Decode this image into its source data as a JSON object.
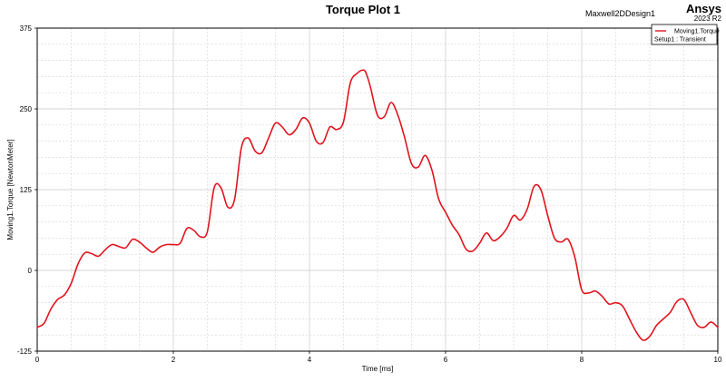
{
  "header": {
    "design_name": "Maxwell2DDesign1",
    "brand": "Ansys",
    "version": "2023 R2"
  },
  "colors": {
    "series": "#e1141e",
    "grid": "#d4d4d4",
    "axis": "#000000",
    "background": "#ffffff"
  },
  "chart_data": {
    "type": "line",
    "title": "Torque Plot 1",
    "xlabel": "Time [ms]",
    "ylabel": "Moving1.Torque [NewtonMeter]",
    "xlim": [
      0,
      10
    ],
    "ylim": [
      -125,
      375
    ],
    "x_ticks": [
      "0",
      "2",
      "4",
      "6",
      "8",
      "10"
    ],
    "x_tick_values": [
      0,
      2,
      4,
      6,
      8,
      10
    ],
    "y_ticks": [
      "-125",
      "0",
      "125",
      "250",
      "375"
    ],
    "y_tick_values": [
      -125,
      0,
      125,
      250,
      375
    ],
    "grid": true,
    "legend_position": "top-right",
    "legend": {
      "series_label": "Moving1.Torque",
      "setup_label": "Setup1 : Transient"
    },
    "series": [
      {
        "name": "Moving1.Torque",
        "color": "#e1141e",
        "x": [
          0.0,
          0.1,
          0.2,
          0.3,
          0.4,
          0.5,
          0.6,
          0.7,
          0.8,
          0.9,
          1.0,
          1.1,
          1.2,
          1.3,
          1.4,
          1.5,
          1.6,
          1.7,
          1.8,
          1.9,
          2.0,
          2.1,
          2.2,
          2.3,
          2.4,
          2.5,
          2.6,
          2.7,
          2.8,
          2.9,
          3.0,
          3.1,
          3.2,
          3.3,
          3.4,
          3.5,
          3.6,
          3.7,
          3.8,
          3.9,
          4.0,
          4.1,
          4.2,
          4.3,
          4.4,
          4.5,
          4.6,
          4.7,
          4.8,
          4.85,
          4.9,
          5.0,
          5.1,
          5.2,
          5.3,
          5.4,
          5.5,
          5.6,
          5.7,
          5.8,
          5.9,
          6.0,
          6.1,
          6.2,
          6.3,
          6.4,
          6.5,
          6.6,
          6.7,
          6.8,
          6.9,
          7.0,
          7.1,
          7.2,
          7.3,
          7.4,
          7.5,
          7.6,
          7.7,
          7.8,
          7.9,
          8.0,
          8.1,
          8.2,
          8.3,
          8.4,
          8.5,
          8.6,
          8.7,
          8.8,
          8.9,
          9.0,
          9.1,
          9.2,
          9.3,
          9.4,
          9.5,
          9.6,
          9.7,
          9.8,
          9.9,
          10.0
        ],
        "values": [
          -88,
          -82,
          -60,
          -45,
          -38,
          -20,
          10,
          27,
          26,
          22,
          32,
          40,
          37,
          35,
          48,
          44,
          35,
          28,
          36,
          40,
          40,
          42,
          65,
          62,
          52,
          60,
          128,
          128,
          98,
          110,
          190,
          205,
          185,
          182,
          205,
          228,
          222,
          210,
          218,
          236,
          228,
          200,
          198,
          222,
          218,
          230,
          290,
          305,
          310,
          300,
          282,
          240,
          238,
          260,
          240,
          205,
          165,
          160,
          178,
          155,
          110,
          90,
          70,
          55,
          33,
          30,
          42,
          58,
          46,
          52,
          65,
          85,
          78,
          95,
          130,
          125,
          85,
          50,
          44,
          48,
          20,
          -30,
          -35,
          -32,
          -40,
          -52,
          -50,
          -55,
          -75,
          -95,
          -108,
          -102,
          -85,
          -75,
          -65,
          -48,
          -45,
          -65,
          -85,
          -88,
          -80,
          -88
        ]
      }
    ]
  }
}
